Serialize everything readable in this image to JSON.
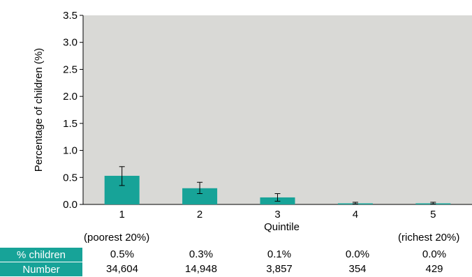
{
  "chart_data": {
    "type": "bar",
    "categories": [
      "1",
      "2",
      "3",
      "4",
      "5"
    ],
    "values": [
      0.53,
      0.3,
      0.13,
      0.02,
      0.02
    ],
    "error_low": [
      0.35,
      0.2,
      0.06,
      0.01,
      0.01
    ],
    "error_high": [
      0.7,
      0.41,
      0.2,
      0.04,
      0.04
    ],
    "xlabel": "Quintile",
    "ylabel": "Percentage of children (%)",
    "ylim": [
      0,
      3.5
    ],
    "yticks": [
      "0.0",
      "0.5",
      "1.0",
      "1.5",
      "2.0",
      "2.5",
      "3.0",
      "3.5"
    ],
    "grid": false,
    "plot_background": "#d9d9d6",
    "bar_color": "#17a398"
  },
  "quintile_notes": {
    "poorest": "(poorest 20%)",
    "richest": "(richest 20%)"
  },
  "table": {
    "rows": [
      {
        "header": "% children",
        "cells": [
          "0.5%",
          "0.3%",
          "0.1%",
          "0.0%",
          "0.0%"
        ]
      },
      {
        "header": "Number",
        "cells": [
          "34,604",
          "14,948",
          "3,857",
          "354",
          "429"
        ]
      }
    ]
  }
}
